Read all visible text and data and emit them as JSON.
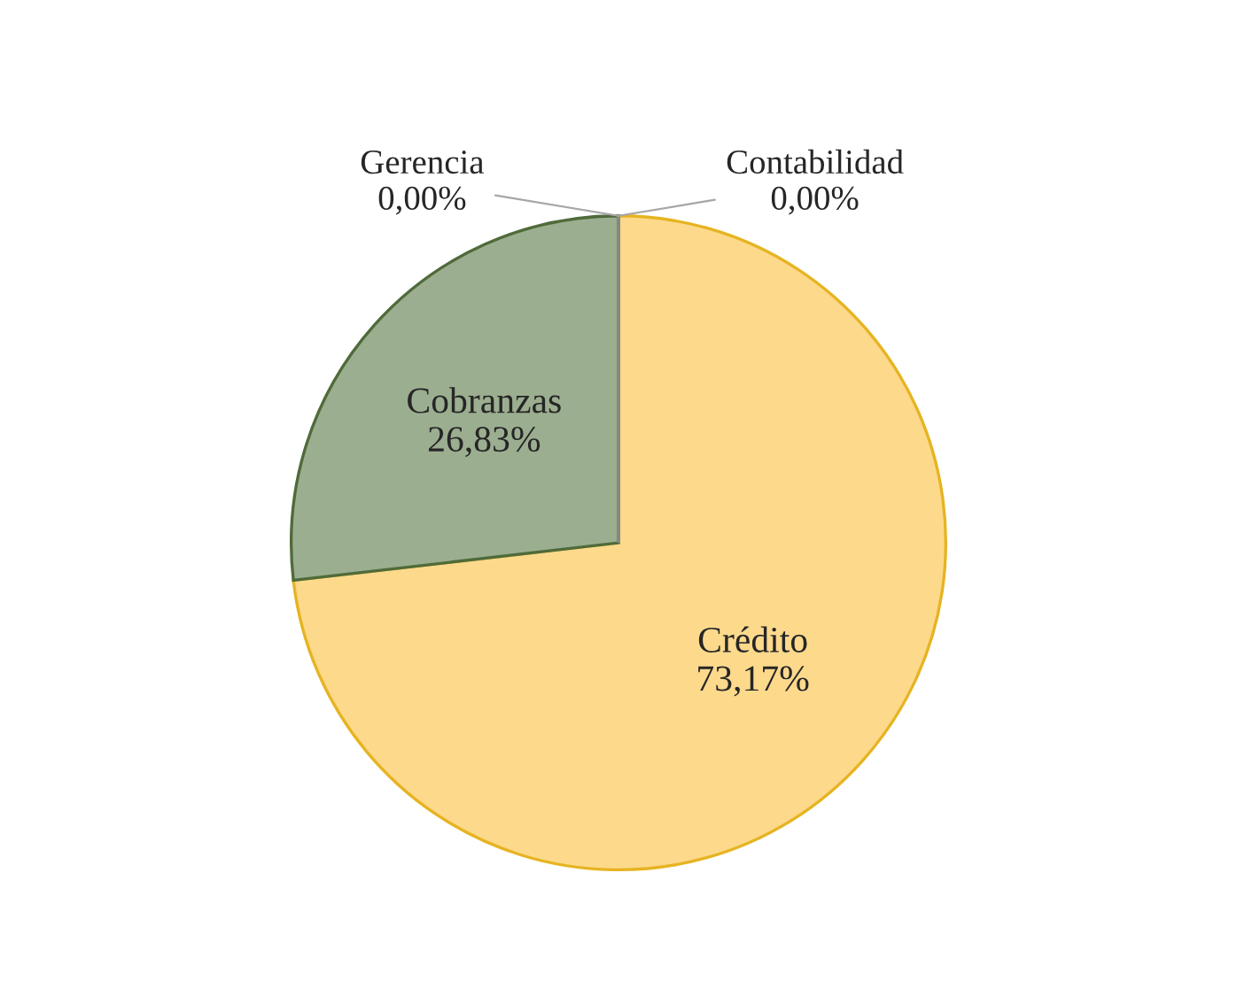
{
  "chart_data": {
    "type": "pie",
    "categories": [
      "Contabilidad",
      "Crédito",
      "Cobranzas",
      "Gerencia"
    ],
    "values": [
      0,
      73.17,
      26.83,
      0
    ],
    "value_labels": [
      "0,00%",
      "73,17%",
      "26,83%",
      "0,00%"
    ],
    "colors": [
      "#d9d9d9",
      "#fdd98c",
      "#9cae90",
      "#bfbfbf"
    ],
    "legend": false
  }
}
